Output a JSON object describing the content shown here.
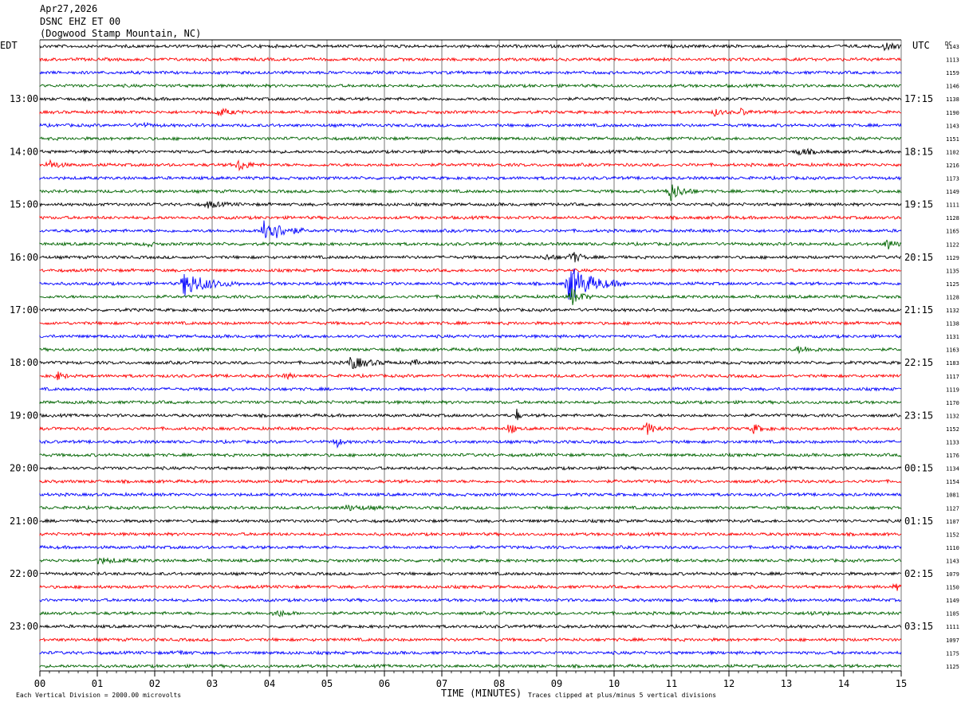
{
  "header": {
    "date": "Apr27,2026",
    "channel": "DSNC EHZ ET 00",
    "location": "(Dogwood Stamp Mountain, NC)"
  },
  "labels": {
    "left_tz": "EDT",
    "right_tz": "UTC",
    "dc": "DC",
    "x_title": "TIME (MINUTES)",
    "footer_left": "Each Vertical Division = 2000.00 microvolts",
    "footer_right": "Traces clipped at plus/minus 5 vertical divisions"
  },
  "colors": {
    "trace_cycle": [
      "#000000",
      "#ff0000",
      "#0000ff",
      "#006400"
    ],
    "grid": "#555555"
  },
  "chart_data": {
    "type": "line",
    "title": "",
    "xlabel": "TIME (MINUTES)",
    "xlim": [
      0,
      15
    ],
    "x_ticks": [
      "00",
      "01",
      "02",
      "03",
      "04",
      "05",
      "06",
      "07",
      "08",
      "09",
      "10",
      "11",
      "12",
      "13",
      "14",
      "15"
    ],
    "left_hour_labels": [
      "13:00",
      "14:00",
      "15:00",
      "16:00",
      "17:00",
      "18:00",
      "19:00",
      "20:00",
      "21:00",
      "22:00",
      "23:00"
    ],
    "right_hour_labels": [
      "17:15",
      "18:15",
      "19:15",
      "20:15",
      "21:15",
      "22:15",
      "23:15",
      "00:15",
      "01:15",
      "02:15",
      "03:15"
    ],
    "hour_label_first_trace": 4,
    "traces_per_hour": 4,
    "dc_values": [
      "1143",
      "1113",
      "1159",
      "1146",
      "1138",
      "1190",
      "1143",
      "1151",
      "1102",
      "1216",
      "1173",
      "1149",
      "1111",
      "1128",
      "1165",
      "1122",
      "1129",
      "1135",
      "1125",
      "1128",
      "1132",
      "1138",
      "1131",
      "1163",
      "1183",
      "1117",
      "1119",
      "1170",
      "1132",
      "1152",
      "1133",
      "1176",
      "1134",
      "1154",
      "1081",
      "1127",
      "1107",
      "1152",
      "1110",
      "1143",
      "1079",
      "1150",
      "1149",
      "1105",
      "1111",
      "1097",
      "1175",
      "1125"
    ],
    "events": [
      {
        "trace": 0,
        "minute": 14.7,
        "amp": 4,
        "dur": 0.5
      },
      {
        "trace": 5,
        "minute": 3.1,
        "amp": 5,
        "dur": 0.5
      },
      {
        "trace": 5,
        "minute": 11.75,
        "amp": 4,
        "dur": 0.3
      },
      {
        "trace": 5,
        "minute": 12.2,
        "amp": 4,
        "dur": 0.3
      },
      {
        "trace": 6,
        "minute": 1.7,
        "amp": 3,
        "dur": 0.5
      },
      {
        "trace": 8,
        "minute": 13.2,
        "amp": 4,
        "dur": 0.6
      },
      {
        "trace": 9,
        "minute": 0.15,
        "amp": 6,
        "dur": 0.4
      },
      {
        "trace": 9,
        "minute": 3.45,
        "amp": 8,
        "dur": 0.4
      },
      {
        "trace": 11,
        "minute": 10.95,
        "amp": 14,
        "dur": 0.5
      },
      {
        "trace": 12,
        "minute": 2.9,
        "amp": 4,
        "dur": 0.6
      },
      {
        "trace": 14,
        "minute": 3.9,
        "amp": 20,
        "dur": 0.7
      },
      {
        "trace": 15,
        "minute": 1.85,
        "amp": 4,
        "dur": 0.2
      },
      {
        "trace": 15,
        "minute": 14.75,
        "amp": 8,
        "dur": 0.3
      },
      {
        "trace": 16,
        "minute": 8.8,
        "amp": 4,
        "dur": 0.4
      },
      {
        "trace": 16,
        "minute": 9.25,
        "amp": 10,
        "dur": 0.3
      },
      {
        "trace": 18,
        "minute": 2.5,
        "amp": 16,
        "dur": 1.0
      },
      {
        "trace": 18,
        "minute": 9.2,
        "amp": 24,
        "dur": 1.0
      },
      {
        "trace": 19,
        "minute": 9.25,
        "amp": 12,
        "dur": 0.4
      },
      {
        "trace": 23,
        "minute": 13.2,
        "amp": 4,
        "dur": 0.6
      },
      {
        "trace": 24,
        "minute": 5.4,
        "amp": 8,
        "dur": 0.8
      },
      {
        "trace": 24,
        "minute": 6.5,
        "amp": 4,
        "dur": 0.2
      },
      {
        "trace": 25,
        "minute": 0.3,
        "amp": 5,
        "dur": 0.3
      },
      {
        "trace": 25,
        "minute": 4.3,
        "amp": 4,
        "dur": 0.2
      },
      {
        "trace": 28,
        "minute": 8.3,
        "amp": 10,
        "dur": 0.1
      },
      {
        "trace": 29,
        "minute": 8.2,
        "amp": 14,
        "dur": 0.1
      },
      {
        "trace": 29,
        "minute": 10.55,
        "amp": 8,
        "dur": 0.4
      },
      {
        "trace": 29,
        "minute": 12.4,
        "amp": 6,
        "dur": 0.4
      },
      {
        "trace": 30,
        "minute": 5.15,
        "amp": 8,
        "dur": 0.2
      },
      {
        "trace": 35,
        "minute": 5.3,
        "amp": 3,
        "dur": 1.0
      },
      {
        "trace": 39,
        "minute": 1.0,
        "amp": 3,
        "dur": 1.0
      },
      {
        "trace": 41,
        "minute": 14.9,
        "amp": 4,
        "dur": 0.3
      },
      {
        "trace": 43,
        "minute": 4.1,
        "amp": 5,
        "dur": 0.4
      },
      {
        "trace": 43,
        "minute": 13.4,
        "amp": 3,
        "dur": 0.4
      },
      {
        "trace": 46,
        "minute": 2.4,
        "amp": 3,
        "dur": 0.3
      }
    ]
  }
}
